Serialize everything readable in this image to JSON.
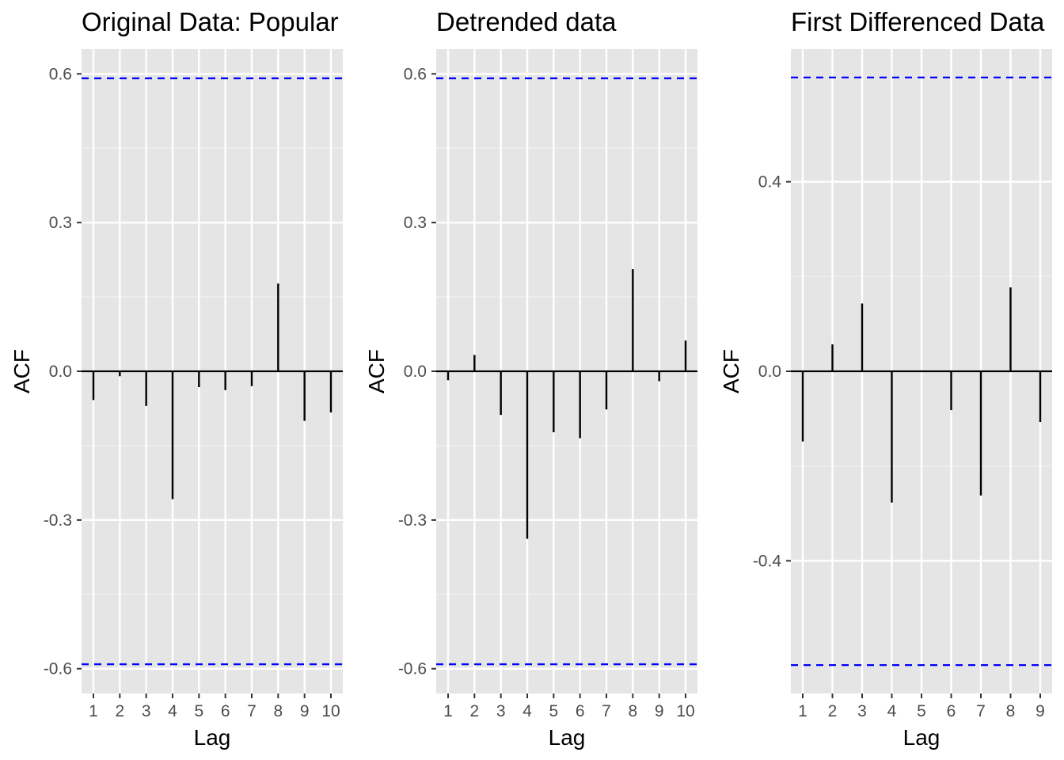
{
  "colors": {
    "panel_background": "#e5e5e5",
    "grid_major": "#ffffff",
    "grid_minor": "#f2f2f2",
    "bar": "#000000",
    "confidence_line": "#0000ff",
    "tick_label": "#4d4d4d"
  },
  "chart_data": [
    {
      "type": "bar",
      "title": "Original Data: Popular",
      "xlabel": "Lag",
      "ylabel": "ACF",
      "x": [
        1,
        2,
        3,
        4,
        5,
        6,
        7,
        8,
        9,
        10
      ],
      "x_tick_labels": [
        "1",
        "2",
        "3",
        "4",
        "5",
        "6",
        "7",
        "8",
        "9",
        "10"
      ],
      "values": [
        -0.058,
        -0.01,
        -0.07,
        -0.258,
        -0.032,
        -0.038,
        -0.03,
        0.177,
        -0.1,
        -0.083
      ],
      "confidence_bound": 0.591,
      "xlim": [
        0.55,
        10.45
      ],
      "ylim": [
        -0.65,
        0.65
      ],
      "y_ticks": [
        -0.6,
        -0.3,
        0.0,
        0.3,
        0.6
      ],
      "y_tick_labels": [
        "-0.6",
        "-0.3",
        "0.0",
        "0.3",
        "0.6"
      ],
      "grid": true
    },
    {
      "type": "bar",
      "title": "Detrended data",
      "xlabel": "Lag",
      "ylabel": "ACF",
      "x": [
        1,
        2,
        3,
        4,
        5,
        6,
        7,
        8,
        9,
        10
      ],
      "x_tick_labels": [
        "1",
        "2",
        "3",
        "4",
        "5",
        "6",
        "7",
        "8",
        "9",
        "10"
      ],
      "values": [
        -0.018,
        0.033,
        -0.088,
        -0.338,
        -0.123,
        -0.135,
        -0.077,
        0.206,
        -0.02,
        0.062
      ],
      "confidence_bound": 0.591,
      "xlim": [
        0.55,
        10.45
      ],
      "ylim": [
        -0.65,
        0.65
      ],
      "y_ticks": [
        -0.6,
        -0.3,
        0.0,
        0.3,
        0.6
      ],
      "y_tick_labels": [
        "-0.6",
        "-0.3",
        "0.0",
        "0.3",
        "0.6"
      ],
      "grid": true
    },
    {
      "type": "bar",
      "title": "First Differenced Data",
      "xlabel": "Lag",
      "ylabel": "ACF",
      "x": [
        1,
        2,
        3,
        4,
        5,
        6,
        7,
        8,
        9
      ],
      "x_tick_labels": [
        "1",
        "2",
        "3",
        "4",
        "5",
        "6",
        "7",
        "8",
        "9"
      ],
      "values": [
        -0.148,
        0.057,
        0.143,
        -0.277,
        0.0,
        -0.082,
        -0.262,
        0.177,
        -0.107
      ],
      "confidence_bound": 0.62,
      "xlim": [
        0.6,
        9.4
      ],
      "ylim": [
        -0.68,
        0.68
      ],
      "y_ticks": [
        -0.4,
        0.0,
        0.4
      ],
      "y_tick_labels": [
        "-0.4",
        "0.0",
        "0.4"
      ],
      "grid": true
    }
  ]
}
